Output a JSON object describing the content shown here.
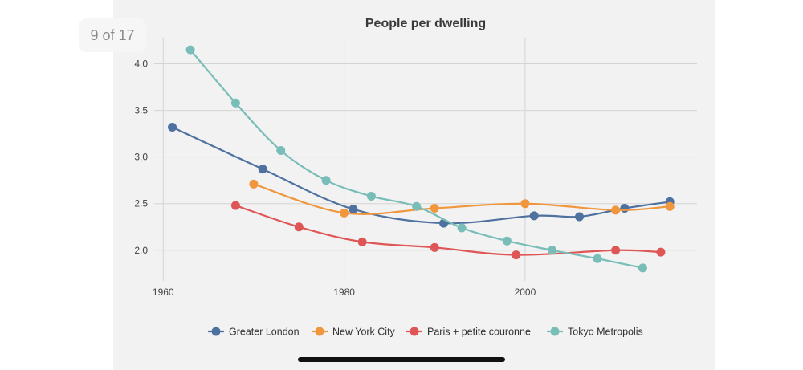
{
  "viewer": {
    "counter": "9 of 17"
  },
  "chart_data": {
    "type": "line",
    "title": "People per dwelling",
    "xlabel": "",
    "ylabel": "",
    "xlim": [
      1959,
      2019
    ],
    "ylim": [
      1.74,
      4.28
    ],
    "x_ticks": [
      1960,
      1980,
      2000
    ],
    "y_ticks": [
      2.0,
      2.5,
      3.0,
      3.5,
      4.0
    ],
    "y_tick_labels": [
      "2.0",
      "2.5",
      "3.0",
      "3.5",
      "4.0"
    ],
    "grid": true,
    "legend_position": "bottom",
    "series": [
      {
        "name": "Greater London",
        "color": "#4e71a0",
        "points": [
          [
            1961,
            3.32
          ],
          [
            1971,
            2.87
          ],
          [
            1981,
            2.44
          ],
          [
            1991,
            2.29
          ],
          [
            2001,
            2.37
          ],
          [
            2006,
            2.36
          ],
          [
            2011,
            2.45
          ],
          [
            2016,
            2.52
          ]
        ]
      },
      {
        "name": "New York City",
        "color": "#f0963c",
        "points": [
          [
            1970,
            2.71
          ],
          [
            1980,
            2.4
          ],
          [
            1990,
            2.45
          ],
          [
            2000,
            2.5
          ],
          [
            2010,
            2.43
          ],
          [
            2016,
            2.47
          ]
        ]
      },
      {
        "name": "Paris + petite couronne",
        "color": "#de5656",
        "points": [
          [
            1968,
            2.48
          ],
          [
            1975,
            2.25
          ],
          [
            1982,
            2.09
          ],
          [
            1990,
            2.03
          ],
          [
            1999,
            1.95
          ],
          [
            2010,
            2.0
          ],
          [
            2015,
            1.98
          ]
        ]
      },
      {
        "name": "Tokyo Metropolis",
        "color": "#79bdb8",
        "points": [
          [
            1963,
            4.15
          ],
          [
            1968,
            3.58
          ],
          [
            1973,
            3.07
          ],
          [
            1978,
            2.75
          ],
          [
            1983,
            2.58
          ],
          [
            1988,
            2.47
          ],
          [
            1993,
            2.24
          ],
          [
            1998,
            2.1
          ],
          [
            2003,
            2.0
          ],
          [
            2008,
            1.91
          ],
          [
            2013,
            1.81
          ]
        ]
      }
    ]
  }
}
